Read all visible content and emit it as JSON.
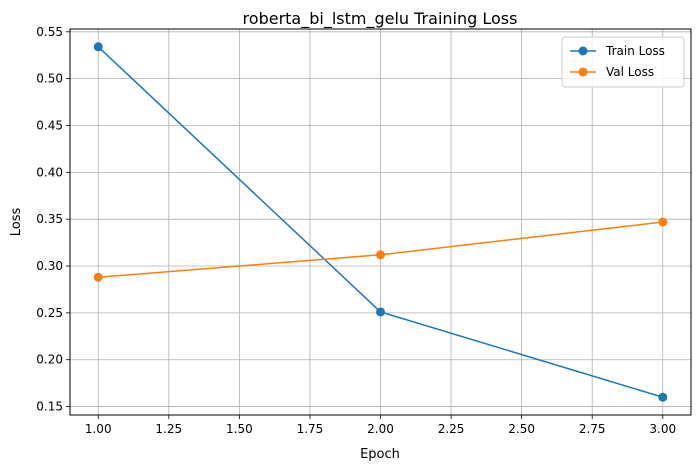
{
  "chart_data": {
    "type": "line",
    "title": "roberta_bi_lstm_gelu Training Loss",
    "xlabel": "Epoch",
    "ylabel": "Loss",
    "xlim": [
      0.9,
      3.1
    ],
    "ylim": [
      0.141,
      0.553
    ],
    "xticks": [
      1.0,
      1.25,
      1.5,
      1.75,
      2.0,
      2.25,
      2.5,
      2.75,
      3.0
    ],
    "xtick_labels": [
      "1.00",
      "1.25",
      "1.50",
      "1.75",
      "2.00",
      "2.25",
      "2.50",
      "2.75",
      "3.00"
    ],
    "yticks": [
      0.15,
      0.2,
      0.25,
      0.3,
      0.35,
      0.4,
      0.45,
      0.5,
      0.55
    ],
    "ytick_labels": [
      "0.15",
      "0.20",
      "0.25",
      "0.30",
      "0.35",
      "0.40",
      "0.45",
      "0.50",
      "0.55"
    ],
    "grid": true,
    "legend_position": "top-right",
    "x": [
      1,
      2,
      3
    ],
    "series": [
      {
        "name": "Train Loss",
        "color": "#1f77b4",
        "marker": "circle",
        "values": [
          0.534,
          0.251,
          0.16
        ]
      },
      {
        "name": "Val Loss",
        "color": "#ff7f0e",
        "marker": "circle",
        "values": [
          0.288,
          0.312,
          0.347
        ]
      }
    ]
  }
}
